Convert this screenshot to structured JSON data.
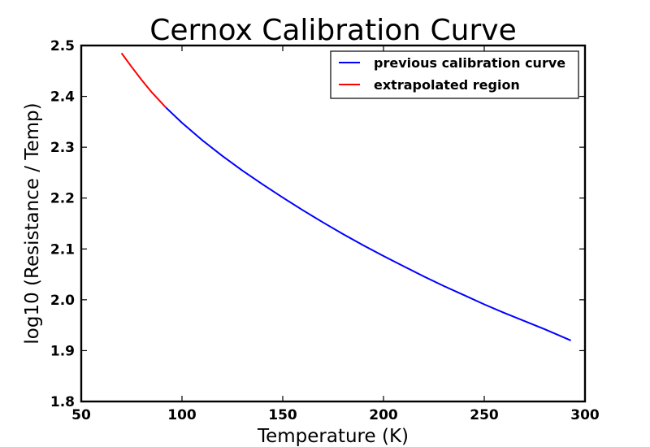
{
  "chart_data": {
    "type": "line",
    "title": "Cernox Calibration Curve",
    "xlabel": "Temperature (K)",
    "ylabel": "log10 (Resistance / Temp)",
    "xlim": [
      50,
      300
    ],
    "ylim": [
      1.8,
      2.5
    ],
    "xticks": [
      "50",
      "100",
      "150",
      "200",
      "250",
      "300"
    ],
    "yticks": [
      "1.8",
      "1.9",
      "2.0",
      "2.1",
      "2.2",
      "2.3",
      "2.4",
      "2.5"
    ],
    "grid": false,
    "legend_position": "top-right",
    "series": [
      {
        "name": "previous calibration curve",
        "color": "#0000ff",
        "x": [
          92,
          100,
          110,
          120,
          130,
          140,
          150,
          160,
          170,
          180,
          190,
          200,
          210,
          220,
          230,
          240,
          250,
          260,
          270,
          280,
          293
        ],
        "y": [
          2.378,
          2.348,
          2.314,
          2.283,
          2.254,
          2.227,
          2.201,
          2.176,
          2.152,
          2.129,
          2.107,
          2.086,
          2.066,
          2.046,
          2.027,
          2.009,
          1.991,
          1.974,
          1.958,
          1.942,
          1.92
        ]
      },
      {
        "name": "extrapolated region",
        "color": "#ff0000",
        "x": [
          70,
          75,
          80,
          85,
          92
        ],
        "y": [
          2.485,
          2.458,
          2.432,
          2.408,
          2.378
        ]
      }
    ]
  }
}
